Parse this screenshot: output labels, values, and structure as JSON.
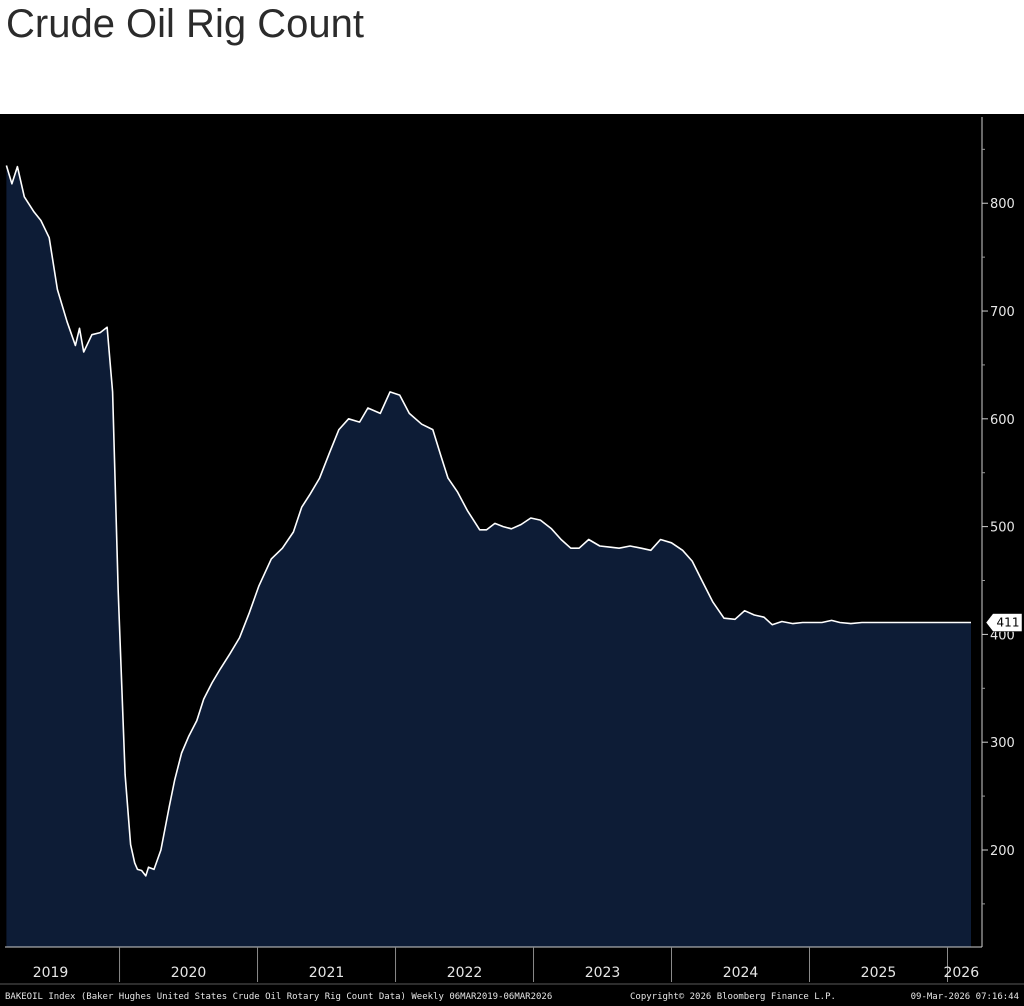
{
  "page": {
    "title": "Crude Oil Rig Count"
  },
  "chart_data": {
    "type": "area",
    "ylim": [
      110,
      880
    ],
    "xlim": [
      2019.17,
      2026.25
    ],
    "y_ticks": [
      200,
      300,
      400,
      500,
      600,
      700,
      800
    ],
    "x_tick_labels": [
      "2019",
      "2020",
      "2021",
      "2022",
      "2023",
      "2024",
      "2025",
      "2026"
    ],
    "x_tick_label_positions": [
      2019.5,
      2020.5,
      2021.5,
      2022.5,
      2023.5,
      2024.5,
      2025.5,
      2026.1
    ],
    "year_boundaries": [
      2020,
      2021,
      2022,
      2023,
      2024,
      2025,
      2026
    ],
    "last_value_label": "411",
    "series": [
      {
        "color": "#ffffff",
        "fill": "#0d1c36",
        "x": [
          2019.18,
          2019.22,
          2019.26,
          2019.31,
          2019.38,
          2019.43,
          2019.49,
          2019.55,
          2019.62,
          2019.68,
          2019.71,
          2019.74,
          2019.8,
          2019.86,
          2019.91,
          2019.95,
          2019.99,
          2020.04,
          2020.08,
          2020.11,
          2020.13,
          2020.16,
          2020.19,
          2020.21,
          2020.25,
          2020.3,
          2020.36,
          2020.4,
          2020.45,
          2020.5,
          2020.56,
          2020.61,
          2020.67,
          2020.73,
          2020.8,
          2020.87,
          2020.94,
          2021.01,
          2021.1,
          2021.18,
          2021.26,
          2021.32,
          2021.38,
          2021.45,
          2021.52,
          2021.59,
          2021.66,
          2021.74,
          2021.8,
          2021.89,
          2021.96,
          2022.03,
          2022.1,
          2022.19,
          2022.27,
          2022.33,
          2022.38,
          2022.45,
          2022.52,
          2022.57,
          2022.61,
          2022.66,
          2022.72,
          2022.78,
          2022.84,
          2022.91,
          2022.98,
          2023.05,
          2023.13,
          2023.2,
          2023.27,
          2023.33,
          2023.4,
          2023.48,
          2023.55,
          2023.62,
          2023.7,
          2023.78,
          2023.85,
          2023.92,
          2024.0,
          2024.08,
          2024.15,
          2024.22,
          2024.3,
          2024.38,
          2024.46,
          2024.53,
          2024.6,
          2024.67,
          2024.73,
          2024.8,
          2024.88,
          2024.95,
          2025.02,
          2025.09,
          2025.16,
          2025.22,
          2025.3,
          2025.38,
          2025.45,
          2025.52,
          2025.58,
          2025.65,
          2025.72,
          2025.79,
          2025.85,
          2025.92,
          2025.99,
          2026.06,
          2026.12,
          2026.17
        ],
        "y": [
          835,
          818,
          834,
          806,
          792,
          784,
          768,
          720,
          690,
          668,
          684,
          662,
          678,
          680,
          685,
          625,
          440,
          270,
          205,
          188,
          182,
          181,
          176,
          184,
          182,
          200,
          240,
          265,
          290,
          305,
          320,
          340,
          355,
          368,
          382,
          397,
          420,
          445,
          470,
          480,
          495,
          518,
          530,
          545,
          568,
          590,
          600,
          597,
          610,
          605,
          625,
          622,
          605,
          595,
          590,
          565,
          545,
          532,
          515,
          505,
          497,
          497,
          503,
          500,
          498,
          502,
          508,
          506,
          498,
          488,
          480,
          480,
          488,
          482,
          481,
          480,
          482,
          480,
          478,
          488,
          485,
          478,
          468,
          450,
          430,
          415,
          414,
          422,
          418,
          416,
          409,
          412,
          410,
          411,
          411,
          411,
          413,
          411,
          410,
          411,
          411,
          411,
          411,
          411,
          411,
          411,
          411,
          411,
          411,
          411,
          411,
          411
        ]
      }
    ]
  },
  "footer": {
    "source": "BAKEOIL Index (Baker Hughes United States Crude Oil Rotary Rig Count Data) Weekly 06MAR2019-06MAR2026",
    "copyright": "Copyright© 2026 Bloomberg Finance L.P.",
    "timestamp": "09-Mar-2026 07:16:44"
  }
}
